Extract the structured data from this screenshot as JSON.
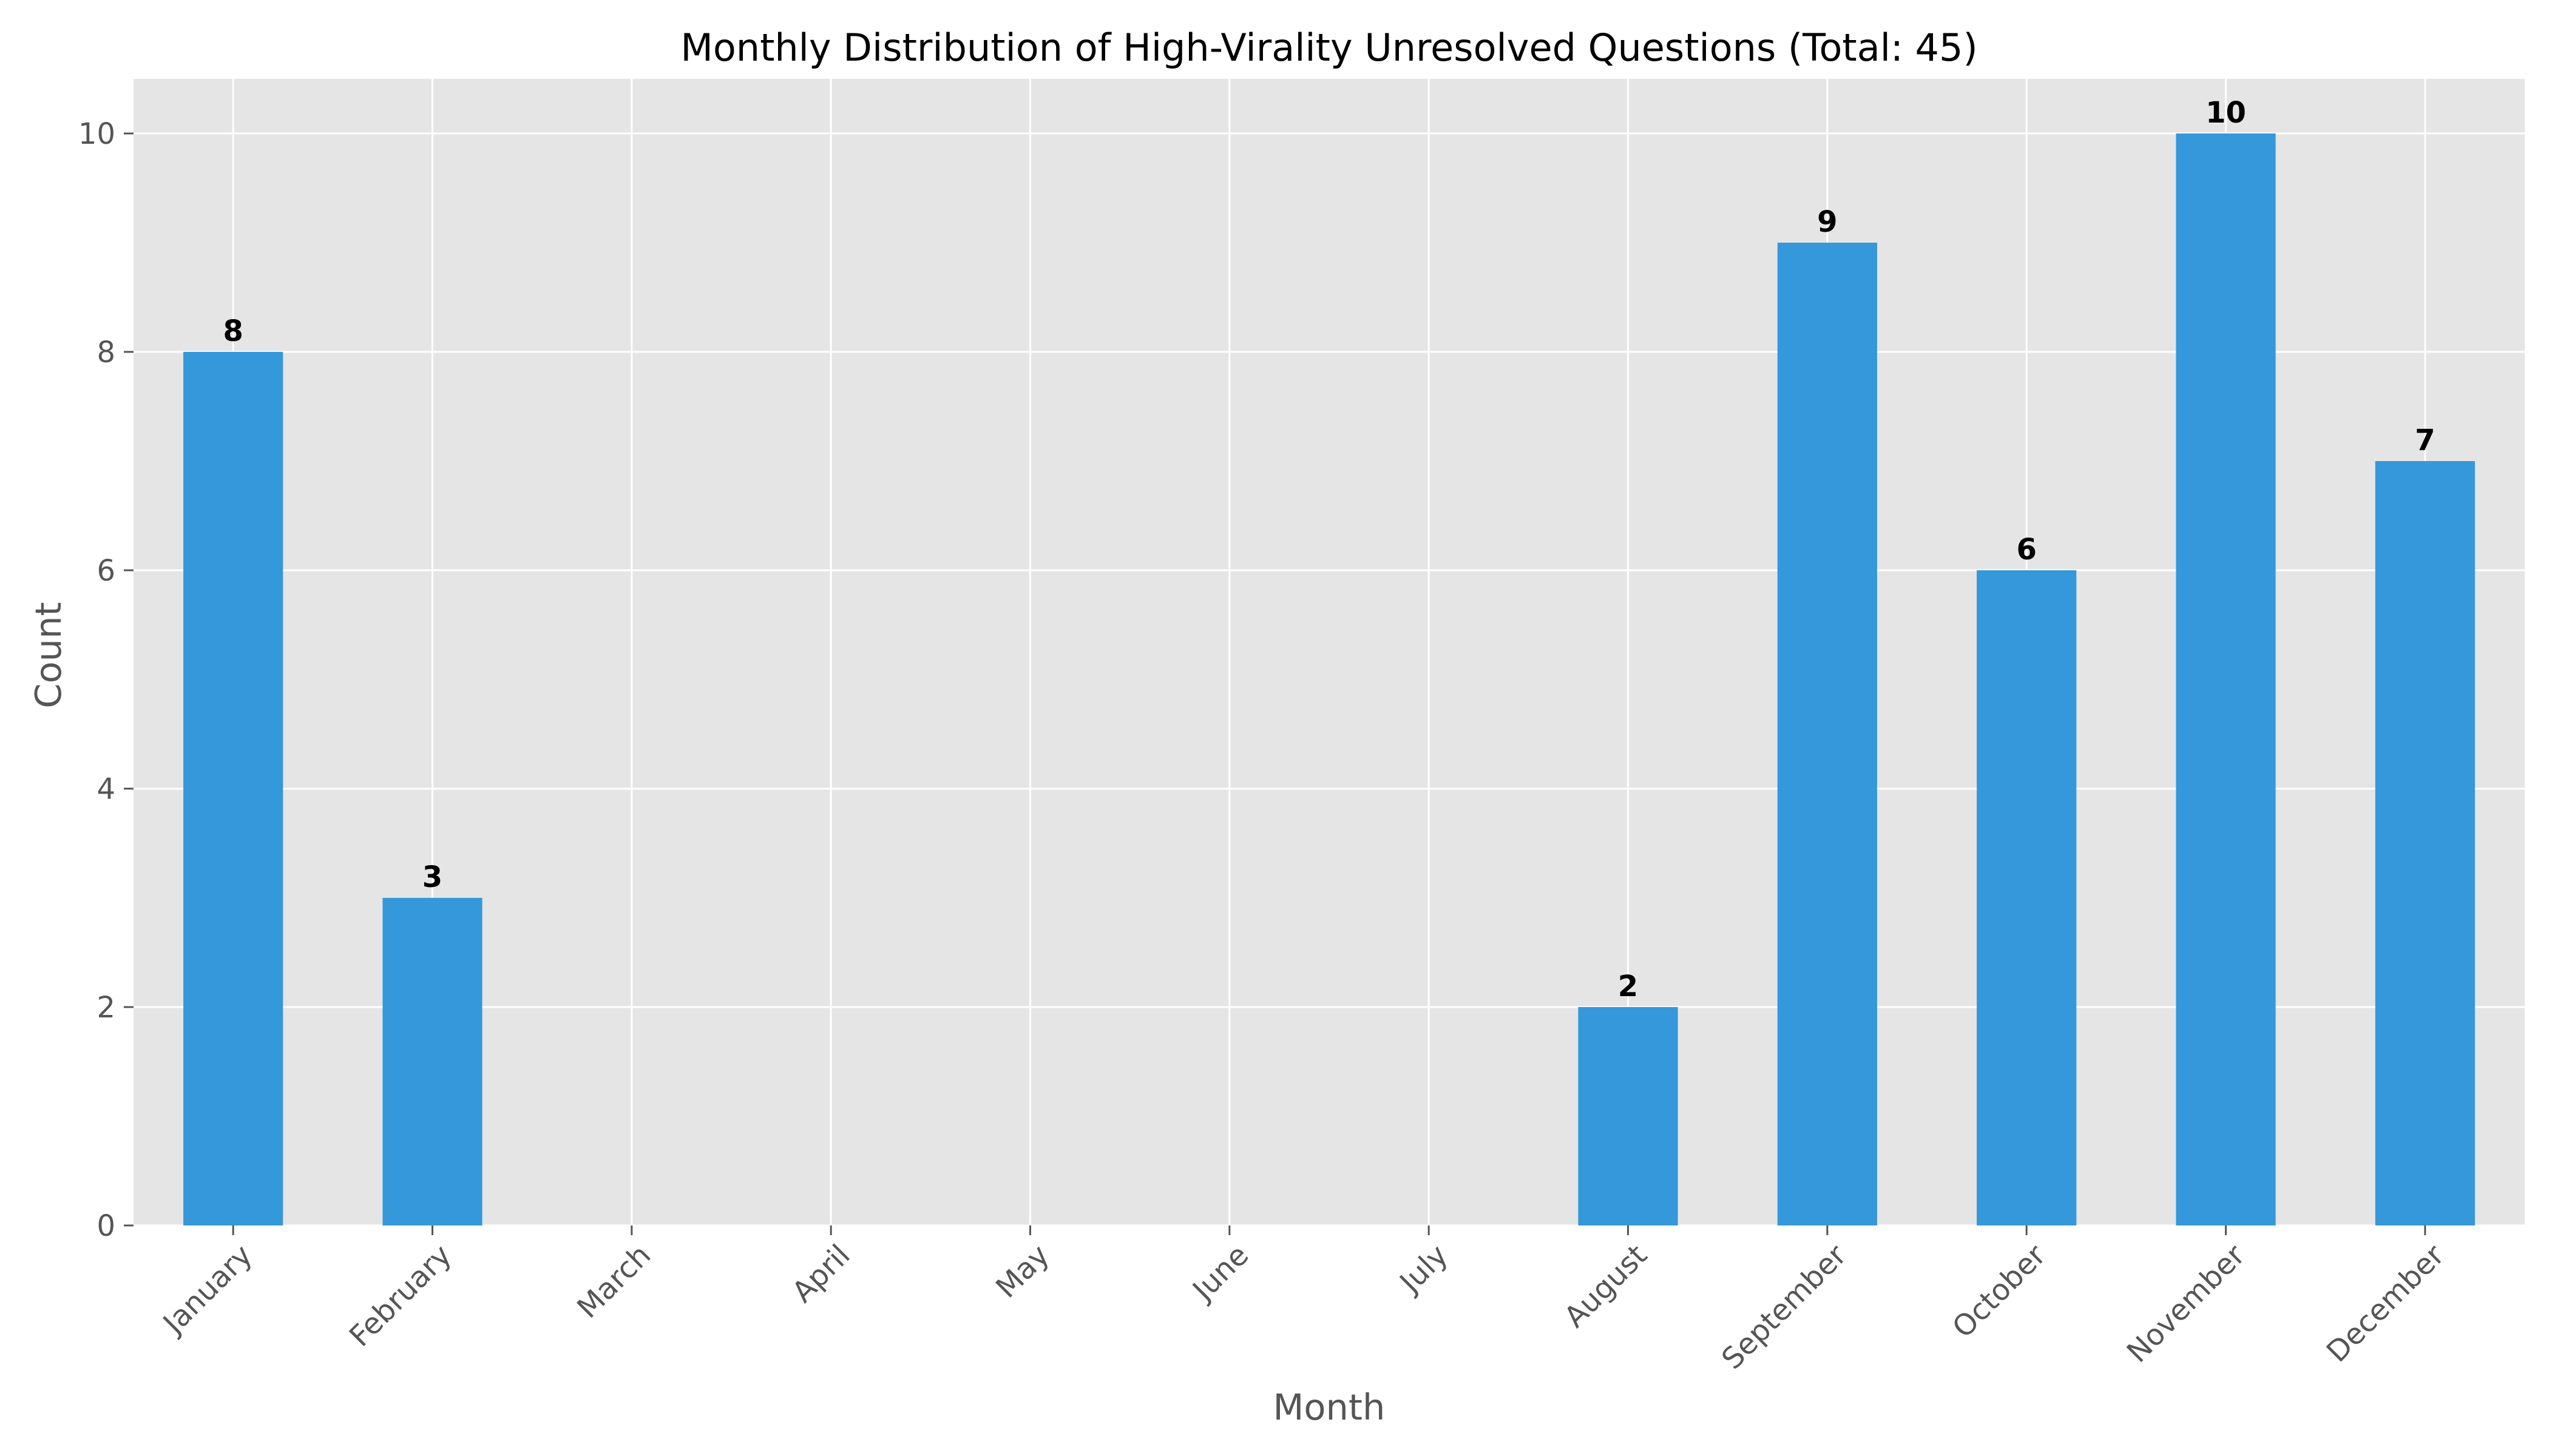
{
  "chart_data": {
    "type": "bar",
    "title": "Monthly Distribution of High-Virality Unresolved Questions (Total: 45)",
    "xlabel": "Month",
    "ylabel": "Count",
    "categories": [
      "January",
      "February",
      "March",
      "April",
      "May",
      "June",
      "July",
      "August",
      "September",
      "October",
      "November",
      "December"
    ],
    "values": [
      8,
      3,
      0,
      0,
      0,
      0,
      0,
      2,
      9,
      6,
      10,
      7
    ],
    "ylim": [
      0,
      10.5
    ],
    "yticks": [
      0,
      2,
      4,
      6,
      8,
      10
    ],
    "data_labels": [
      "8",
      "3",
      "",
      "",
      "",
      "",
      "",
      "2",
      "9",
      "6",
      "10",
      "7"
    ],
    "grid": true,
    "style": {
      "bar_color": "#3498db",
      "plot_background": "#e5e5e5",
      "grid_color": "#ffffff",
      "tick_label_rotation_deg": 45
    }
  }
}
